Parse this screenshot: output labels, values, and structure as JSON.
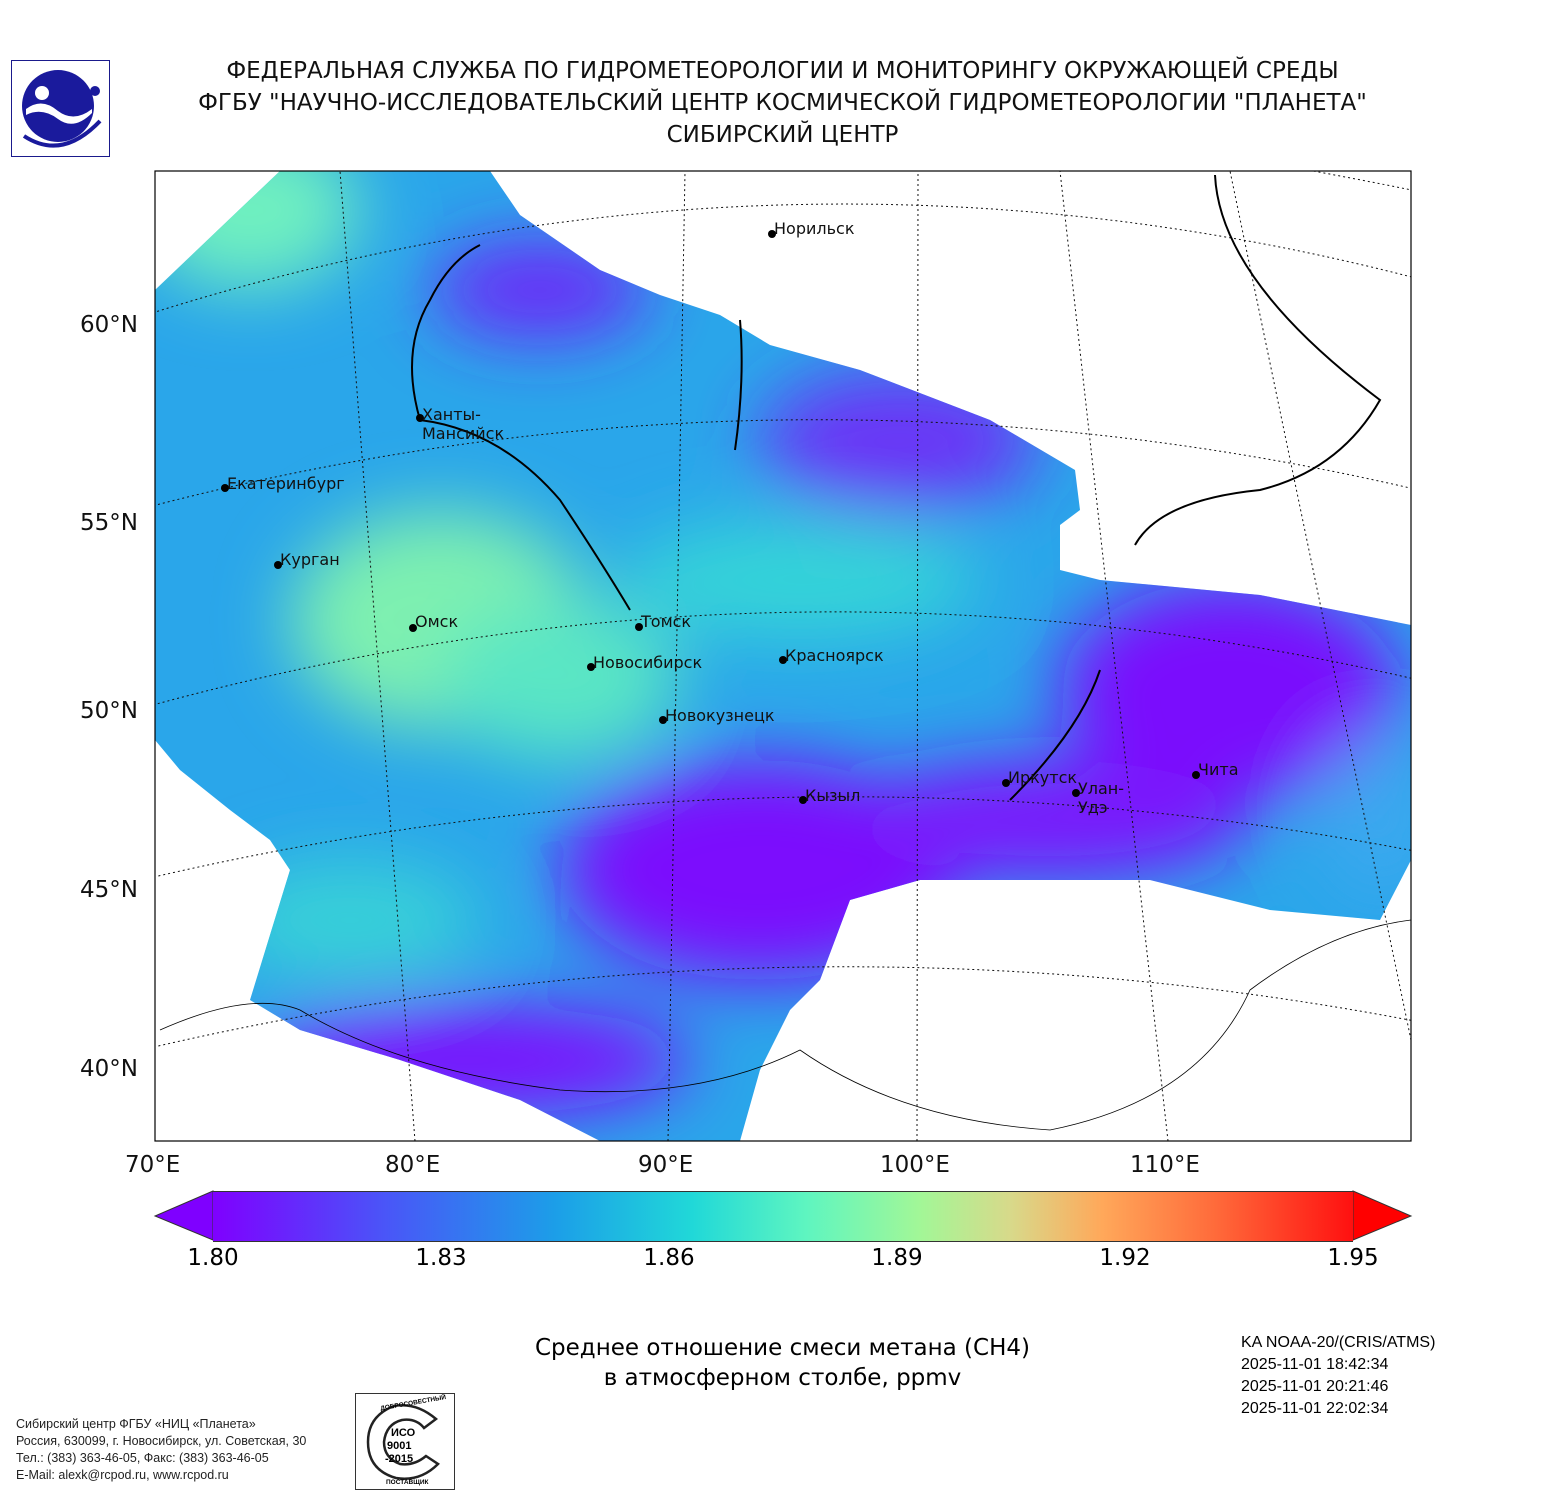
{
  "header": {
    "line1": "ФЕДЕРАЛЬНАЯ СЛУЖБА ПО ГИДРОМЕТЕОРОЛОГИИ И МОНИТОРИНГУ ОКРУЖАЮЩЕЙ СРЕДЫ",
    "line2": "ФГБУ \"НАУЧНО-ИССЛЕДОВАТЕЛЬСКИЙ ЦЕНТР КОСМИЧЕСКОЙ ГИДРОМЕТЕОРОЛОГИИ \"ПЛАНЕТА\"",
    "line3": "СИБИРСКИЙ ЦЕНТР"
  },
  "map": {
    "lat_labels": [
      "60°N",
      "55°N",
      "50°N",
      "45°N",
      "40°N"
    ],
    "lon_labels": [
      "70°E",
      "80°E",
      "90°E",
      "100°E",
      "110°E"
    ],
    "cities": [
      "Норильск",
      "Ханты-Мансийск",
      "Екатеринбург",
      "Курган",
      "Омск",
      "Томск",
      "Новосибирск",
      "Красноярск",
      "Новокузнецк",
      "Иркутск",
      "Улан-Удэ",
      "Чита",
      "Кызыл"
    ]
  },
  "colorbar": {
    "min": 1.8,
    "max": 1.95,
    "ticks": [
      "1.80",
      "1.83",
      "1.86",
      "1.89",
      "1.92",
      "1.95"
    ],
    "colors": {
      "low": "#7f00ff",
      "mid": "#5ef5c0",
      "high": "#ff0000"
    }
  },
  "title": {
    "line1": "Среднее отношение смеси метана (CH4)",
    "line2": "в атмосферном столбе, ppmv"
  },
  "satellite": {
    "name": "KA NOAA-20/(CRIS/ATMS)",
    "passes": [
      "2025-11-01 18:42:34",
      "2025-11-01 20:21:46",
      "2025-11-01 22:02:34"
    ]
  },
  "footer": {
    "lines": [
      "Сибирский центр ФГБУ «НИЦ «Планета»",
      "Россия, 630099, г. Новосибирск, ул. Советская, 30",
      "Тел.: (383) 363-46-05, Факс: (383) 363-46-05",
      "E-Mail: alexk@rcpod.ru, www.rcpod.ru"
    ],
    "iso_logo": {
      "top": "ДОБРОСОВЕСТНЫЙ",
      "center": [
        "ИСО",
        "9001",
        "-2015"
      ],
      "bottom": "ПОСТАВЩИК"
    }
  }
}
